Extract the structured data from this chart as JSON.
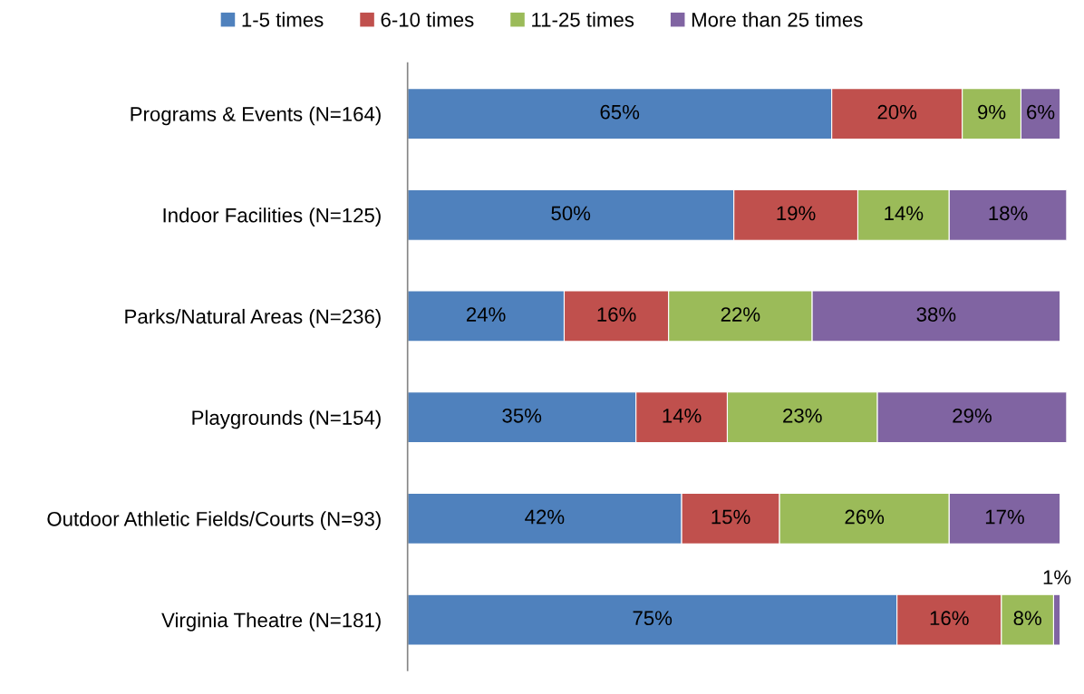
{
  "chart_data": {
    "type": "bar",
    "orientation": "horizontal",
    "stacked": true,
    "legend": "top",
    "tick_labels": "y",
    "categories": [
      "Programs & Events (N=164)",
      "Indoor Facilities (N=125)",
      "Parks/Natural Areas (N=236)",
      "Playgrounds (N=154)",
      "Outdoor Athletic Fields/Courts (N=93)",
      "Virginia Theatre (N=181)"
    ],
    "series": [
      {
        "name": "1-5 times",
        "color": "#4f81bd",
        "values": [
          65,
          50,
          24,
          35,
          42,
          75
        ],
        "value_labels": [
          "65%",
          "50%",
          "24%",
          "35%",
          "42%",
          "75%"
        ]
      },
      {
        "name": "6-10 times",
        "color": "#c0504d",
        "values": [
          20,
          19,
          16,
          14,
          15,
          16
        ],
        "value_labels": [
          "20%",
          "19%",
          "16%",
          "14%",
          "15%",
          "16%"
        ]
      },
      {
        "name": "11-25 times",
        "color": "#9bbb59",
        "values": [
          9,
          14,
          22,
          23,
          26,
          8
        ],
        "value_labels": [
          "9%",
          "14%",
          "22%",
          "23%",
          "26%",
          "8%"
        ]
      },
      {
        "name": "More than 25 times",
        "color": "#8064a2",
        "values": [
          6,
          18,
          38,
          29,
          17,
          1
        ],
        "value_labels": [
          "6%",
          "18%",
          "38%",
          "29%",
          "17%",
          "1%"
        ]
      }
    ]
  }
}
